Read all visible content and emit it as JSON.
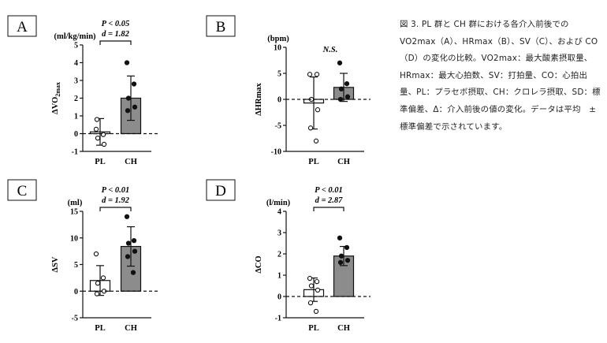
{
  "caption": "図 3. PL 群と CH 群における各介入前後での VO2max（A）、HRmax（B）、SV（C）、および CO（D）の変化の比較。VO2max：最大酸素摂取量、HRmax：最大心拍数、SV：打拍量、CO：心拍出量、PL：プラセボ摂取、CH：クロレラ摂取、SD：標準偏差、Δ：介入前後の値の変化。データは平均　±　標準偏差で示されています。",
  "colors": {
    "pl_bar": "#ffffff",
    "ch_bar": "#8c8c8c",
    "ink": "#111111"
  },
  "chart_data": [
    {
      "panel": "A",
      "type": "bar",
      "categories": [
        "PL",
        "CH"
      ],
      "unit": "(ml/kg/min)",
      "ylabel": "ΔVO2max",
      "ylim": [
        -1,
        5
      ],
      "yticks": [
        -1,
        0,
        1,
        2,
        3,
        4,
        5
      ],
      "stats": [
        "P < 0.05",
        "d = 1.82"
      ],
      "bracket": true,
      "series": [
        {
          "category": "PL",
          "mean": 0.1,
          "sd": 0.75,
          "points": [
            0.25,
            -0.05,
            -0.25,
            -0.6,
            0.8
          ]
        },
        {
          "category": "CH",
          "mean": 2.0,
          "sd": 1.25,
          "points": [
            4.0,
            2.8,
            2.0,
            1.5,
            1.3
          ]
        }
      ]
    },
    {
      "panel": "B",
      "type": "bar",
      "categories": [
        "PL",
        "CH"
      ],
      "unit": "(bpm)",
      "ylabel": "ΔHRmax",
      "ylim": [
        -10,
        10
      ],
      "yticks": [
        -10,
        -5,
        0,
        5,
        10
      ],
      "stats": [
        "N.S."
      ],
      "bracket": false,
      "series": [
        {
          "category": "PL",
          "mean": -0.7,
          "sd": 5.0,
          "points": [
            4.8,
            4.8,
            0.0,
            -2.0,
            -5.5,
            -8.0
          ]
        },
        {
          "category": "CH",
          "mean": 2.3,
          "sd": 2.7,
          "points": [
            7.0,
            3.0,
            2.0,
            0.5,
            0.0
          ]
        }
      ]
    },
    {
      "panel": "C",
      "type": "bar",
      "categories": [
        "PL",
        "CH"
      ],
      "unit": "(ml)",
      "ylabel": "ΔSV",
      "ylim": [
        -5,
        15
      ],
      "yticks": [
        -5,
        0,
        5,
        10,
        15
      ],
      "stats": [
        "P < 0.01",
        "d = 1.92"
      ],
      "bracket": true,
      "series": [
        {
          "category": "PL",
          "mean": 2.0,
          "sd": 2.8,
          "points": [
            7.0,
            2.5,
            1.5,
            0.0,
            -0.5
          ]
        },
        {
          "category": "CH",
          "mean": 8.4,
          "sd": 3.7,
          "points": [
            14.0,
            9.5,
            9.0,
            7.5,
            6.5,
            3.5
          ]
        }
      ]
    },
    {
      "panel": "D",
      "type": "bar",
      "categories": [
        "PL",
        "CH"
      ],
      "unit": "(l/min)",
      "ylabel": "ΔCO",
      "ylim": [
        -1,
        4
      ],
      "yticks": [
        -1,
        0,
        1,
        2,
        3,
        4
      ],
      "stats": [
        "P < 0.01",
        "d = 2.87"
      ],
      "bracket": true,
      "series": [
        {
          "category": "PL",
          "mean": 0.32,
          "sd": 0.55,
          "points": [
            0.85,
            0.7,
            0.5,
            0.3,
            -0.3,
            -0.7
          ]
        },
        {
          "category": "CH",
          "mean": 1.9,
          "sd": 0.45,
          "points": [
            2.75,
            2.3,
            1.9,
            1.7,
            1.6
          ]
        }
      ]
    }
  ]
}
